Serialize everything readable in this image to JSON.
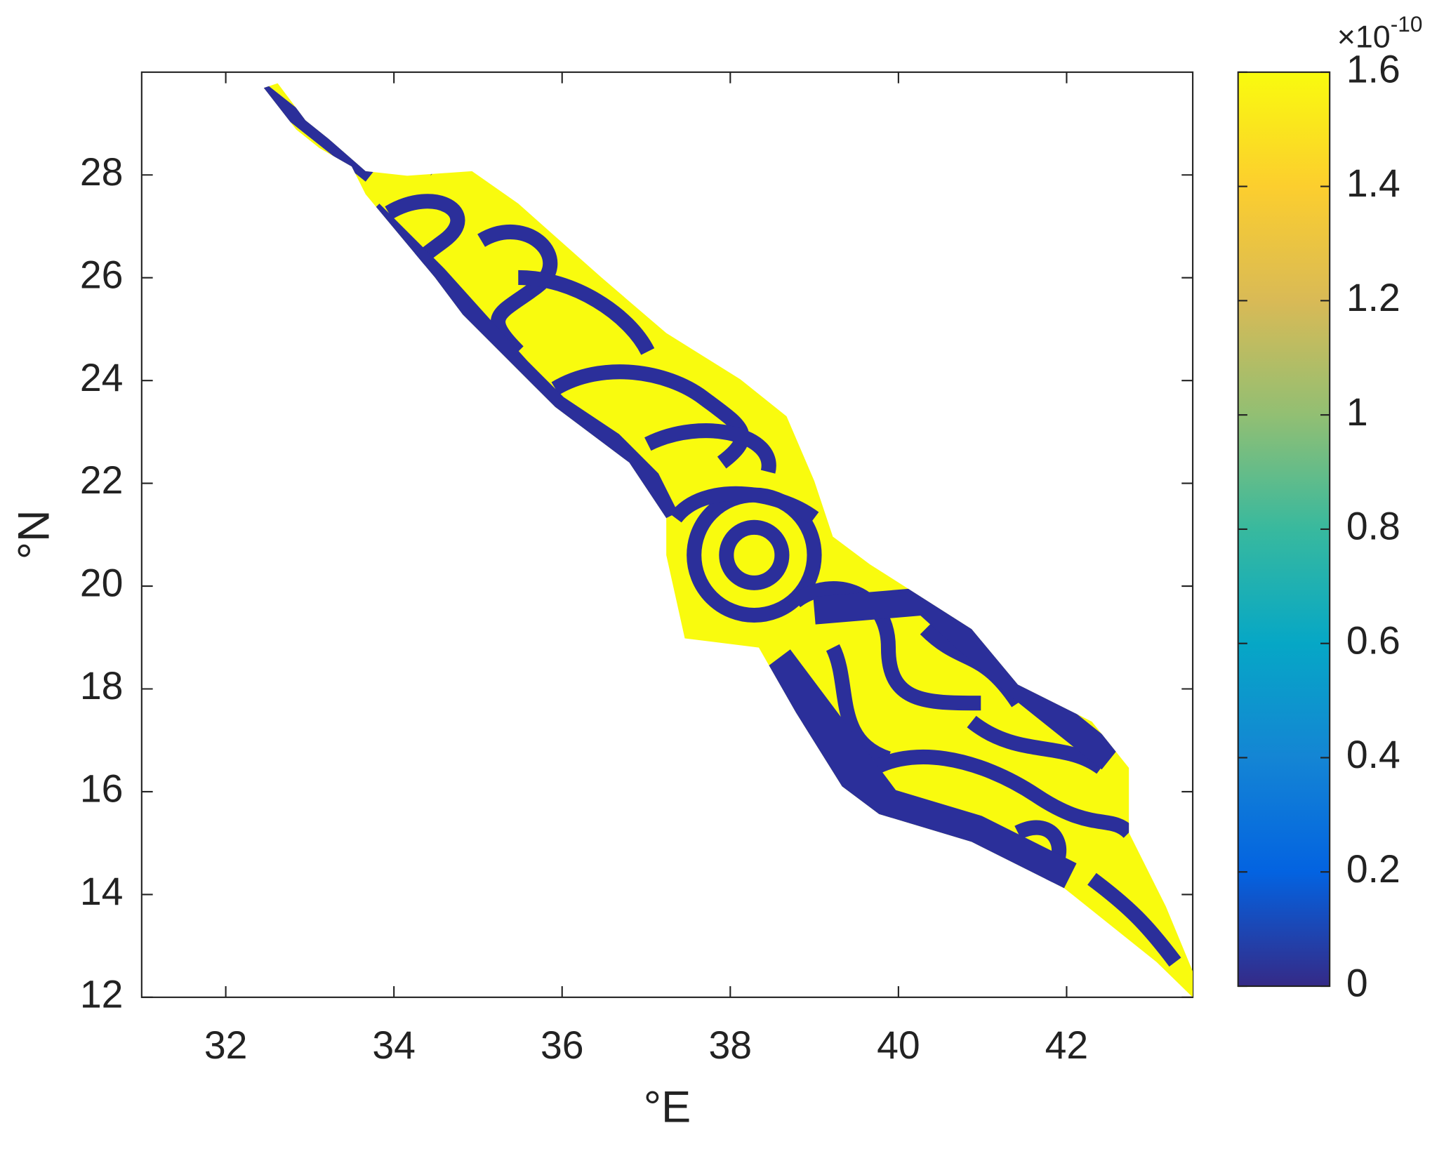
{
  "chart_data": {
    "type": "map",
    "x_label": "°E",
    "y_label": "°N",
    "xlim": [
      31,
      43.5
    ],
    "xticks": [
      32,
      34,
      36,
      38,
      40,
      42
    ],
    "ylim": [
      12,
      30
    ],
    "yticks": [
      12,
      14,
      16,
      18,
      20,
      22,
      24,
      26,
      28
    ],
    "colorbar": {
      "clim": [
        0,
        1.6
      ],
      "ticks": [
        0,
        0.2,
        0.4,
        0.6,
        0.8,
        1,
        1.2,
        1.4,
        1.6
      ],
      "exponent_base": "×10",
      "exponent_power": "-10",
      "colormap": [
        "#352a87",
        "#0363e1",
        "#1485d4",
        "#06a7c6",
        "#38b99e",
        "#92bf73",
        "#d9ba56",
        "#fcce2e",
        "#f9fb0e"
      ]
    }
  }
}
